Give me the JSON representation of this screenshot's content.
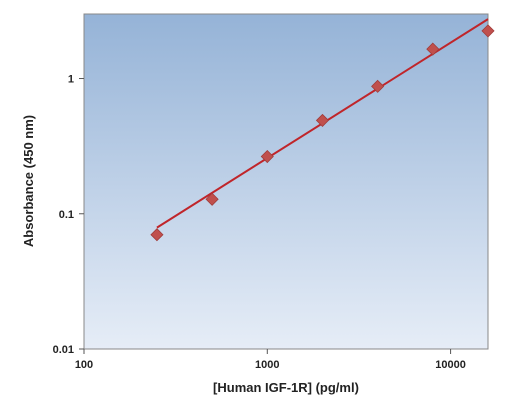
{
  "chart_data": {
    "type": "scatter",
    "title": "",
    "xlabel": "[Human IGF-1R] (pg/ml)",
    "ylabel": "Absorbance (450 nm)",
    "x_scale": "log",
    "y_scale": "log",
    "xlim": [
      100,
      16000
    ],
    "ylim": [
      0.01,
      3
    ],
    "x_ticks": [
      {
        "value": 100,
        "label": "100"
      },
      {
        "value": 1000,
        "label": "1000"
      },
      {
        "value": 10000,
        "label": "10000"
      }
    ],
    "y_ticks": [
      {
        "value": 0.01,
        "label": "0.01"
      },
      {
        "value": 0.1,
        "label": "0.1"
      },
      {
        "value": 1,
        "label": "1"
      }
    ],
    "grid": false,
    "legend": "none",
    "series": [
      {
        "kind": "points",
        "x": [
          250,
          500,
          1000,
          2000,
          4000,
          8000,
          16000
        ],
        "y": [
          0.07,
          0.128,
          0.265,
          0.49,
          0.875,
          1.65,
          2.25
        ]
      },
      {
        "kind": "fit-line",
        "x": [
          250,
          16000
        ],
        "y": [
          0.079,
          2.75
        ]
      }
    ],
    "colors": {
      "marker": "#c0504d",
      "fit_line": "#c0252a",
      "plot_bg_top": "#95b3d7",
      "plot_bg_bottom": "#e6edf7"
    }
  }
}
